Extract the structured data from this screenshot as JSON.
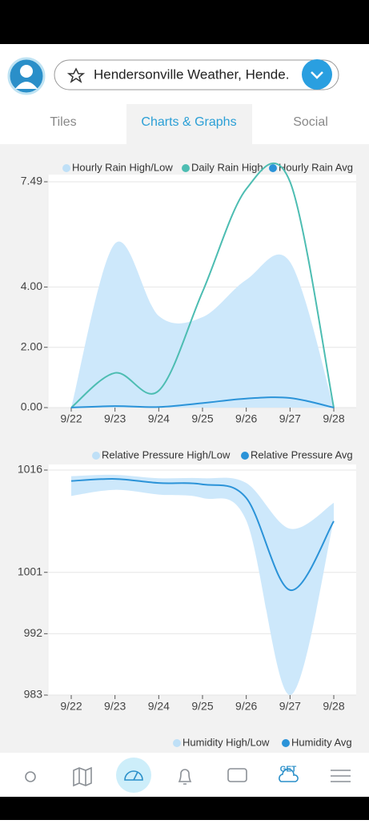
{
  "header": {
    "search_text": "Hendersonville Weather, Hende."
  },
  "tabs": [
    "Tiles",
    "Charts & Graphs",
    "Social"
  ],
  "active_tab": 1,
  "charts": [
    {
      "type": "line",
      "categories": [
        "9/22",
        "9/23",
        "9/24",
        "9/25",
        "9/26",
        "9/27",
        "9/28"
      ],
      "ylim": [
        0,
        7.49
      ],
      "yticks": [
        {
          "value": 0,
          "label": "0.00"
        },
        {
          "value": 2,
          "label": "2.00"
        },
        {
          "value": 4,
          "label": "4.00"
        },
        {
          "value": 7.49,
          "label": "7.49"
        }
      ],
      "grid": true,
      "series": [
        {
          "name": "Hourly Rain High/Low",
          "color": "#cde8fb",
          "high": [
            0,
            5.44,
            3.04,
            3.0,
            4.24,
            4.83,
            0
          ],
          "low": [
            0,
            0,
            0,
            0,
            0,
            0,
            0
          ]
        },
        {
          "name": "Daily Rain High",
          "color": "#4dbdb2",
          "values": [
            0,
            1.15,
            0.56,
            3.84,
            7.25,
            7.49,
            0
          ]
        },
        {
          "name": "Hourly Rain Avg",
          "color": "#2b93d8",
          "values": [
            0,
            0.05,
            0.02,
            0.15,
            0.3,
            0.32,
            0
          ]
        }
      ]
    },
    {
      "type": "line",
      "categories": [
        "9/22",
        "9/23",
        "9/24",
        "9/25",
        "9/26",
        "9/27",
        "9/28"
      ],
      "ylim": [
        983,
        1016
      ],
      "yticks": [
        983,
        992,
        1001,
        1016
      ],
      "grid": true,
      "series": [
        {
          "name": "Relative Pressure High/Low",
          "color": "#cde8fb",
          "high": [
            1015.1,
            1015.3,
            1014.8,
            1014.8,
            1014.1,
            1007.4,
            1011.2
          ],
          "low": [
            1012.2,
            1013.1,
            1012.4,
            1011.9,
            1008.6,
            983,
            1008.6
          ]
        },
        {
          "name": "Relative Pressure Avg",
          "color": "#2b93d8",
          "values": [
            1014.4,
            1014.7,
            1014.1,
            1013.9,
            1011.9,
            998.4,
            1008.5
          ]
        }
      ]
    },
    {
      "type": "legend",
      "series": [
        {
          "name": "Humidity High/Low",
          "color": "#cde8fb"
        },
        {
          "name": "Humidity Avg",
          "color": "#2b93d8"
        }
      ]
    }
  ],
  "nav": {
    "get_label": "GET"
  }
}
